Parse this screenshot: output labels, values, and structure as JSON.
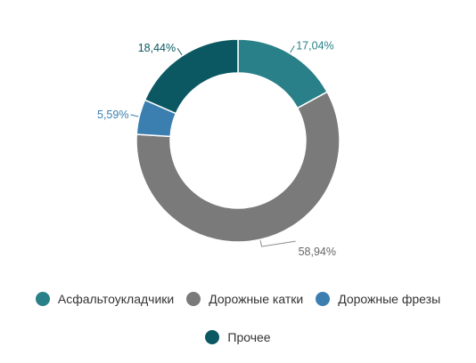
{
  "chart_data": {
    "type": "pie",
    "donut": true,
    "categories": [
      "Асфальтоукладчики",
      "Дорожные катки",
      "Дорожные фрезы",
      "Прочее"
    ],
    "values": [
      17.04,
      58.94,
      5.59,
      18.44
    ],
    "labels": [
      "17,04%",
      "58,94%",
      "5,59%",
      "18,44%"
    ],
    "colors": [
      "#2a8088",
      "#7a7a7a",
      "#3a7fb0",
      "#0b5862"
    ],
    "label_colors": [
      "#2a8088",
      "#666666",
      "#3a7fb0",
      "#0b5862"
    ],
    "legend_position": "bottom"
  },
  "legend": {
    "items": [
      {
        "label": "Асфальтоукладчики",
        "color": "#2a8088"
      },
      {
        "label": "Дорожные катки",
        "color": "#7a7a7a"
      },
      {
        "label": "Дорожные фрезы",
        "color": "#3a7fb0"
      },
      {
        "label": "Прочее",
        "color": "#0b5862"
      }
    ]
  }
}
